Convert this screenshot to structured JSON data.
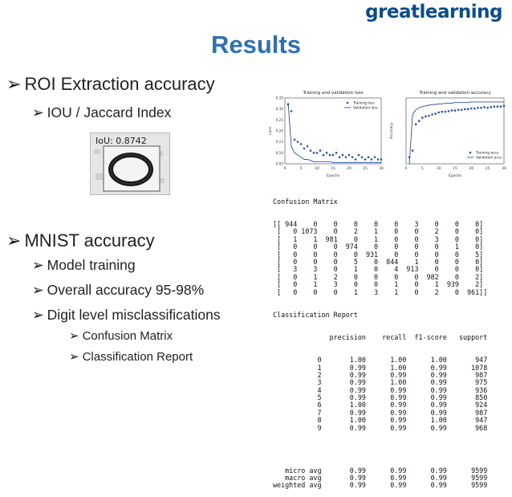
{
  "logo": {
    "text": "greatlearning"
  },
  "title": "Results",
  "bullets": {
    "roi": "ROI Extraction accuracy",
    "iou": "IOU / Jaccard Index",
    "mnist": "MNIST accuracy",
    "model_training": "Model training",
    "overall": "Overall accuracy 95-98%",
    "digit_level": "Digit level misclassifications",
    "confusion": "Confusion Matrix",
    "classification": "Classification Report"
  },
  "iou_image": {
    "label": "IoU: 0.8742"
  },
  "chart_data": [
    {
      "type": "scatter",
      "title": "Training and validation loss",
      "xlabel": "Epochs",
      "ylabel": "Loss",
      "xlim": [
        0,
        30
      ],
      "ylim": [
        0.05,
        0.35
      ],
      "xticks": [
        0,
        5,
        10,
        15,
        20,
        25,
        30
      ],
      "yticks": [
        0.05,
        0.1,
        0.15,
        0.2,
        0.25,
        0.3,
        0.35
      ],
      "legend": "top-right",
      "series": [
        {
          "name": "Training loss",
          "kind": "points",
          "color": "#2a4fb0",
          "x": [
            1,
            2,
            3,
            4,
            5,
            6,
            7,
            8,
            9,
            10,
            11,
            12,
            13,
            14,
            15,
            16,
            17,
            18,
            19,
            20,
            21,
            22,
            23,
            24,
            25,
            26,
            27,
            28,
            29,
            30
          ],
          "y": [
            0.32,
            0.29,
            0.16,
            0.15,
            0.14,
            0.12,
            0.13,
            0.11,
            0.1,
            0.1,
            0.11,
            0.09,
            0.1,
            0.09,
            0.09,
            0.1,
            0.08,
            0.09,
            0.08,
            0.09,
            0.08,
            0.07,
            0.09,
            0.08,
            0.07,
            0.08,
            0.07,
            0.08,
            0.07,
            0.07
          ]
        },
        {
          "name": "Validation loss",
          "kind": "line",
          "color": "#2a4fb0",
          "x": [
            1,
            2,
            3,
            4,
            5,
            6,
            7,
            8,
            9,
            10,
            11,
            12,
            13,
            14,
            15,
            16,
            17,
            18,
            19,
            20,
            21,
            22,
            23,
            24,
            25,
            26,
            27,
            28,
            29,
            30
          ],
          "y": [
            0.33,
            0.13,
            0.1,
            0.09,
            0.08,
            0.07,
            0.07,
            0.065,
            0.06,
            0.06,
            0.06,
            0.06,
            0.06,
            0.06,
            0.055,
            0.055,
            0.055,
            0.055,
            0.055,
            0.055,
            0.055,
            0.055,
            0.055,
            0.055,
            0.055,
            0.055,
            0.055,
            0.055,
            0.055,
            0.055
          ]
        }
      ]
    },
    {
      "type": "scatter",
      "title": "Training and validation accuracy",
      "xlabel": "Epochs",
      "ylabel": "Accuracy",
      "xlim": [
        0,
        30
      ],
      "ylim": [
        0.89,
        0.99
      ],
      "xticks": [
        0,
        5,
        10,
        15,
        20,
        25,
        30
      ],
      "legend": "bottom-right",
      "series": [
        {
          "name": "Training accu",
          "kind": "points",
          "color": "#2a4fb0",
          "x": [
            1,
            2,
            3,
            4,
            5,
            6,
            7,
            8,
            9,
            10,
            11,
            12,
            13,
            14,
            15,
            16,
            17,
            18,
            19,
            20,
            21,
            22,
            23,
            24,
            25,
            26,
            27,
            28,
            29,
            30
          ],
          "y": [
            0.9,
            0.91,
            0.95,
            0.955,
            0.96,
            0.962,
            0.963,
            0.965,
            0.966,
            0.968,
            0.969,
            0.969,
            0.97,
            0.971,
            0.971,
            0.972,
            0.972,
            0.973,
            0.973,
            0.974,
            0.974,
            0.975,
            0.975,
            0.976,
            0.975,
            0.976,
            0.977,
            0.977,
            0.977,
            0.978
          ]
        },
        {
          "name": "Validation accu",
          "kind": "line",
          "color": "#2a4fb0",
          "x": [
            1,
            2,
            3,
            4,
            5,
            6,
            7,
            8,
            9,
            10,
            11,
            12,
            13,
            14,
            15,
            16,
            17,
            18,
            19,
            20,
            21,
            22,
            23,
            24,
            25,
            26,
            27,
            28,
            29,
            30
          ],
          "y": [
            0.89,
            0.965,
            0.972,
            0.975,
            0.977,
            0.978,
            0.979,
            0.98,
            0.98,
            0.981,
            0.981,
            0.982,
            0.982,
            0.982,
            0.983,
            0.983,
            0.983,
            0.983,
            0.983,
            0.984,
            0.984,
            0.984,
            0.984,
            0.984,
            0.984,
            0.984,
            0.984,
            0.984,
            0.984,
            0.984
          ]
        }
      ]
    }
  ],
  "report": {
    "cm_title": "Confusion Matrix",
    "cm_rows": [
      "[[ 944    0    0    0    0    0    3    0    0    0]",
      " [   0 1073    0    2    1    0    0    2    0    0]",
      " [   1    1  981    0    1    0    0    3    0    0]",
      " [   0    0    0  974    0    0    0    0    1    0]",
      " [   0    0    0    0  931    0    0    0    0    5]",
      " [   0    0    0    5    0  844    1    0    0    0]",
      " [   3    3    0    1    0    4  913    0    0    0]",
      " [   0    1    2    0    0    0    0  982    0    2]",
      " [   0    1    3    0    0    1    0    1  939    2]",
      " [   0    0    0    1    3    1    0    2    0  961]]"
    ],
    "cr_title": "Classification Report",
    "cr_header": "              precision    recall  f1-score   support",
    "cr_rows": [
      "           0       1.00      1.00      1.00       947",
      "           1       0.99      1.00      0.99      1078",
      "           2       0.99      0.99      0.99       987",
      "           3       0.99      1.00      0.99       975",
      "           4       0.99      0.99      0.99       936",
      "           5       0.99      0.99      0.99       850",
      "           6       1.00      0.99      0.99       924",
      "           7       0.99      0.99      0.99       987",
      "           8       1.00      0.99      1.00       947",
      "           9       0.99      0.99      0.99       968"
    ],
    "cr_avg": [
      "   micro avg       0.99      0.99      0.99      9599",
      "   macro avg       0.99      0.99      0.99      9599",
      "weighted avg       0.99      0.99      0.99      9599"
    ]
  },
  "colors": {
    "title": "#2f6fb3",
    "logo": "#0a4d8c",
    "plot": "#2a4fb0"
  }
}
